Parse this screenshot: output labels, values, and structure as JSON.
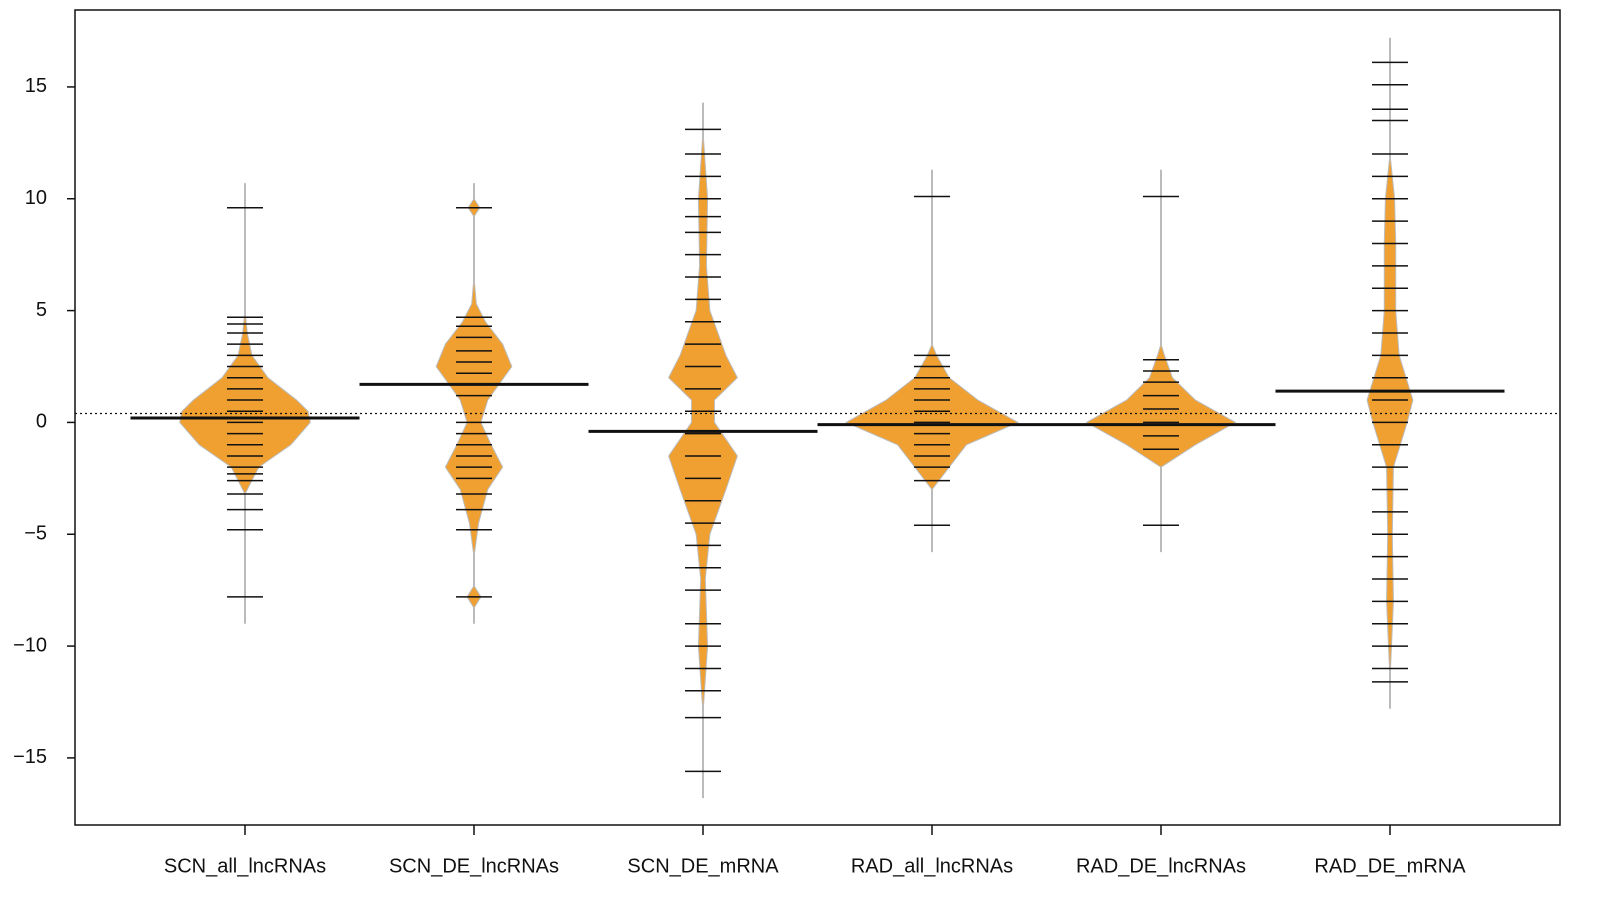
{
  "chart_data": {
    "type": "beanplot",
    "categories": [
      "SCN_all_lncRNAs",
      "SCN_DE_lncRNAs",
      "SCN_DE_mRNA",
      "RAD_all_lncRNAs",
      "RAD_DE_lncRNAs",
      "RAD_DE_mRNA"
    ],
    "overall_mean": 0.4,
    "ylim": [
      -18,
      18.44
    ],
    "yticks": [
      {
        "value": -15,
        "label": "−15"
      },
      {
        "value": -10,
        "label": "−10"
      },
      {
        "value": -5,
        "label": "−5"
      },
      0,
      5,
      10,
      15
    ],
    "bean_color": "#f0a030",
    "rug_color": "#111111",
    "beans": [
      {
        "mean": 0.2,
        "min": -9,
        "max": 10.7,
        "points": [
          9.6,
          4.7,
          4.4,
          4,
          3.5,
          3,
          2.5,
          2,
          1.5,
          1,
          0.5,
          0,
          -0.5,
          -1,
          -1.5,
          -2,
          -2.3,
          -2.6,
          -3.2,
          -3.9,
          -4.8,
          -7.8
        ],
        "density_y": [
          -3.2,
          -2,
          -1,
          0,
          0.5,
          1,
          2,
          3,
          4,
          5
        ],
        "density_width": [
          0,
          0.12,
          0.4,
          0.57,
          0.55,
          0.45,
          0.2,
          0.06,
          0.02,
          0
        ]
      },
      {
        "mean": 1.7,
        "min": -9,
        "max": 10.7,
        "points": [
          9.6,
          4.7,
          4.3,
          3.8,
          3.2,
          2.7,
          2.2,
          1.7,
          1.2,
          0,
          -0.5,
          -1,
          -1.5,
          -2,
          -2.5,
          -3.2,
          -3.9,
          -4.8,
          -7.8
        ],
        "density_y": [
          -8.3,
          -7.8,
          -7.3,
          -6,
          -4.5,
          -3,
          -2,
          -1,
          0,
          1,
          2.5,
          3.5,
          4.5,
          5.3,
          6.5,
          9.2,
          9.6,
          10
        ],
        "density_width": [
          0,
          0.06,
          0,
          0,
          0.04,
          0.12,
          0.25,
          0.15,
          0.06,
          0.12,
          0.33,
          0.25,
          0.1,
          0.02,
          0,
          0,
          0.05,
          0
        ]
      },
      {
        "mean": -0.4,
        "min": -16.8,
        "max": 14.3,
        "points": [
          13.1,
          12,
          11,
          10,
          9.2,
          8.5,
          7.5,
          6.5,
          5.5,
          4.5,
          3.5,
          2.5,
          1.5,
          0.5,
          -0.5,
          -1.5,
          -2.5,
          -3.5,
          -4.5,
          -5.5,
          -6.5,
          -7.5,
          -9,
          -10,
          -11,
          -12,
          -13.2,
          -15.6
        ],
        "density_y": [
          -13,
          -10,
          -7,
          -5,
          -3,
          -1.5,
          0,
          1,
          2,
          3,
          5,
          7,
          10,
          13
        ],
        "density_width": [
          0,
          0.04,
          0.02,
          0.06,
          0.2,
          0.3,
          0.1,
          0.1,
          0.3,
          0.2,
          0.06,
          0.03,
          0.04,
          0
        ]
      },
      {
        "mean": -0.1,
        "min": -5.8,
        "max": 11.3,
        "points": [
          10.1,
          3,
          2.5,
          2,
          1.5,
          1,
          0.5,
          0,
          -0.5,
          -1,
          -1.5,
          -2,
          -2.6,
          -4.6
        ],
        "density_y": [
          -3,
          -1,
          0,
          1,
          2,
          3,
          3.5
        ],
        "density_width": [
          0,
          0.3,
          0.75,
          0.4,
          0.15,
          0.04,
          0
        ]
      },
      {
        "mean": -0.1,
        "min": -5.8,
        "max": 11.3,
        "points": [
          10.1,
          2.8,
          2.3,
          1.8,
          1.2,
          0.6,
          0,
          -0.6,
          -1.2,
          -4.6
        ],
        "density_y": [
          -2,
          -1,
          0,
          1,
          2,
          3,
          3.5
        ],
        "density_width": [
          0,
          0.3,
          0.65,
          0.3,
          0.1,
          0.03,
          0
        ]
      },
      {
        "mean": 1.4,
        "min": -12.8,
        "max": 17.2,
        "points": [
          16.1,
          15.1,
          14,
          13.5,
          12,
          11,
          10,
          9,
          8,
          7,
          6,
          5,
          4,
          3,
          2,
          1,
          0,
          -1,
          -2,
          -3,
          -4,
          -5,
          -6,
          -7,
          -8,
          -9,
          -10,
          -11,
          -11.6
        ],
        "density_y": [
          -11.5,
          -8,
          -5,
          -2,
          0,
          1,
          2,
          3,
          5,
          8,
          10,
          12
        ],
        "density_width": [
          0,
          0.03,
          0.02,
          0.03,
          0.15,
          0.2,
          0.14,
          0.08,
          0.05,
          0.05,
          0.04,
          0
        ]
      }
    ]
  }
}
